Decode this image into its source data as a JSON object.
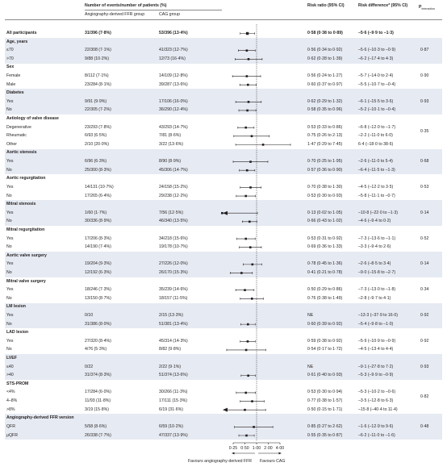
{
  "header": {
    "events_group": "Number of events/number of patients (%)",
    "col_a": "Angiography-derived FFR group",
    "col_b": "CAG group",
    "rr": "Risk ratio (95% CI)",
    "rd": "Risk difference* (95% CI)",
    "pint": "P",
    "pint_sub": "interaction"
  },
  "axis": {
    "ticks": [
      "0·25",
      "0·50",
      "1·00",
      "2·00",
      "4·00"
    ],
    "favours_left": "Favours angiography-derived FFR",
    "favours_right": "Favours CAG"
  },
  "chart_data": {
    "type": "forest",
    "x_scale": "log",
    "xlim": [
      0.25,
      4.0
    ],
    "reference_line": 1.0,
    "rows": [
      {
        "kind": "row",
        "bold": true,
        "label": "All participants",
        "a": "31/396 (7·8%)",
        "b": "53/396 (13·4%)",
        "rr": "0·58 (0·38 to 0·89)",
        "rd": "–5·6 (–9·9 to –1·3)",
        "est": 0.58,
        "lo": 0.38,
        "hi": 0.89
      },
      {
        "kind": "head",
        "label": "Age, years"
      },
      {
        "kind": "row",
        "label": "≤70",
        "a": "22/308 (7·1%)",
        "b": "41/323 (12·7%)",
        "rr": "0·56 (0·34 to 0·92)",
        "rd": "–5·6 (–10·3 to –0·9)",
        "est": 0.56,
        "lo": 0.34,
        "hi": 0.92
      },
      {
        "kind": "row",
        "label": ">70",
        "a": "9/88 (10·2%)",
        "b": "12/73 (16·4%)",
        "rr": "0·62 (0·28 to 1·39)",
        "rd": "–6·2 (–17·4 to 4·3)",
        "est": 0.62,
        "lo": 0.28,
        "hi": 1.39
      },
      {
        "kind": "head",
        "label": "Sex"
      },
      {
        "kind": "row",
        "label": "Female",
        "a": "8/112 (7·1%)",
        "b": "14/109 (12·8%)",
        "rr": "0·56 (0·24 to 1·27)",
        "rd": "–5·7 (–14·0 to 2·4)",
        "est": 0.56,
        "lo": 0.24,
        "hi": 1.27
      },
      {
        "kind": "row",
        "label": "Male",
        "a": "23/284 (8·1%)",
        "b": "39/287 (13·6%)",
        "rr": "0·60 (0·37 to 0·97)",
        "rd": "–5·5 (–10·7 to –0·4)",
        "est": 0.6,
        "lo": 0.37,
        "hi": 0.97
      },
      {
        "kind": "head",
        "label": "Diabetes"
      },
      {
        "kind": "row",
        "label": "Yes",
        "a": "9/91 (9·9%)",
        "b": "17/106 (16·0%)",
        "rr": "0·62 (0·29 to 1·32)",
        "rd": "–6·1 (–15·5 to 3·6)",
        "est": 0.62,
        "lo": 0.29,
        "hi": 1.32
      },
      {
        "kind": "row",
        "label": "No",
        "a": "22/305 (7·2%)",
        "b": "36/290 (12·4%)",
        "rr": "0·58 (0·35 to 0·96)",
        "rd": "–5·2 (–10·1 to –0·4)",
        "est": 0.58,
        "lo": 0.35,
        "hi": 0.96
      },
      {
        "kind": "head",
        "label": "Aetiology of valve disease"
      },
      {
        "kind": "row",
        "label": "Degenerative",
        "a": "23/293 (7·8%)",
        "b": "43/293 (14·7%)",
        "rr": "0·53 (0·33 to 0·86)",
        "rd": "–6·8 (–12·0 to –1·7)",
        "est": 0.53,
        "lo": 0.33,
        "hi": 0.86
      },
      {
        "kind": "row",
        "label": "Rheumatic",
        "a": "6/93 (6·5%)",
        "b": "7/81 (8·6%)",
        "rr": "0·75 (0·26 to 2·13)",
        "rd": "–2·2 (–11·0 to 6·0)",
        "est": 0.75,
        "lo": 0.26,
        "hi": 2.13
      },
      {
        "kind": "row",
        "label": "Other",
        "a": "2/10 (20·0%)",
        "b": "3/22 (13·6%)",
        "rr": "1·47 (0·29 to 7·45)",
        "rd": "6·4 (–18·0 to 38·6)",
        "est": 1.47,
        "lo": 0.29,
        "hi": 7.45
      },
      {
        "kind": "head",
        "label": "Aortic stenosis"
      },
      {
        "kind": "row",
        "label": "Yes",
        "a": "6/96 (6·3%)",
        "b": "8/90 (8·9%)",
        "rr": "0·70 (0·25 to 1·95)",
        "rd": "–2·6 (–11·0 to 5·4)",
        "est": 0.7,
        "lo": 0.25,
        "hi": 1.95
      },
      {
        "kind": "row",
        "label": "No",
        "a": "25/300 (8·3%)",
        "b": "45/306 (14·7%)",
        "rr": "0·57 (0·36 to 0·90)",
        "rd": "–6·4 (–11·5 to –1·3)",
        "est": 0.57,
        "lo": 0.36,
        "hi": 0.9
      },
      {
        "kind": "head",
        "label": "Aortic regurgitation"
      },
      {
        "kind": "row",
        "label": "Yes",
        "a": "14/131 (10·7%)",
        "b": "24/158 (15·2%)",
        "rr": "0·70 (0·38 to 1·30)",
        "rd": "–4·5 (–12·2 to 3·5)",
        "est": 0.7,
        "lo": 0.38,
        "hi": 1.3
      },
      {
        "kind": "row",
        "label": "No",
        "a": "17/265 (6·4%)",
        "b": "29/238 (12·2%)",
        "rr": "0·53 (0·30 to 0·93)",
        "rd": "–5·8 (–11·1 to –0·7)",
        "est": 0.53,
        "lo": 0.3,
        "hi": 0.93
      },
      {
        "kind": "head",
        "label": "Mitral stenosis"
      },
      {
        "kind": "row",
        "label": "Yes",
        "a": "1/60 (1·7%)",
        "b": "7/56 (12·5%)",
        "rr": "0·13 (0·02 to 1·05)",
        "rd": "–10·8 (–22·0 to –1·3)",
        "est": 0.13,
        "lo": 0.02,
        "hi": 1.05
      },
      {
        "kind": "row",
        "label": "No",
        "a": "30/336 (8·9%)",
        "b": "46/340 (13·5%)",
        "rr": "0·66 (0·43 to 1·02)",
        "rd": "–4·6 (–9·4 to 0·2)",
        "est": 0.66,
        "lo": 0.43,
        "hi": 1.02
      },
      {
        "kind": "head",
        "label": "Mitral regurgitation"
      },
      {
        "kind": "row",
        "label": "Yes",
        "a": "17/206 (8·3%)",
        "b": "34/218 (15·6%)",
        "rr": "0·53 (0·31 to 0·92)",
        "rd": "–7·3 (–13·6 to –1·1)",
        "est": 0.53,
        "lo": 0.31,
        "hi": 0.92
      },
      {
        "kind": "row",
        "label": "No",
        "a": "14/190 (7·4%)",
        "b": "19/178 (10·7%)",
        "rr": "0·69 (0·36 to 1·33)",
        "rd": "–3·3 (–9·4 to 2·6)",
        "est": 0.69,
        "lo": 0.36,
        "hi": 1.33
      },
      {
        "kind": "head",
        "label": "Aortic valve surgery"
      },
      {
        "kind": "row",
        "label": "Yes",
        "a": "19/204 (9·3%)",
        "b": "27/226 (12·0%)",
        "rr": "0·78 (0·45 to 1·36)",
        "rd": "–2·6 (–8·5 to 3·4)",
        "est": 0.78,
        "lo": 0.45,
        "hi": 1.36
      },
      {
        "kind": "row",
        "label": "No",
        "a": "12/192 (6·3%)",
        "b": "26/170 (15·3%)",
        "rr": "0·41 (0·21 to 0·78)",
        "rd": "–9·0 (–15·8 to –2·7)",
        "est": 0.41,
        "lo": 0.21,
        "hi": 0.78
      },
      {
        "kind": "head",
        "label": "Mitral valve surgery"
      },
      {
        "kind": "row",
        "label": "Yes",
        "a": "18/246 (7·3%)",
        "b": "35/239 (14·6%)",
        "rr": "0·50 (0·29 to 0·86)",
        "rd": "–7·3 (–13·0 to –1·8)",
        "est": 0.5,
        "lo": 0.29,
        "hi": 0.86
      },
      {
        "kind": "row",
        "label": "No",
        "a": "13/150 (8·7%)",
        "b": "18/157 (11·5%)",
        "rr": "0·76 (0·38 to 1·49)",
        "rd": "–2·8 (–9·7 to 4·1)",
        "est": 0.76,
        "lo": 0.38,
        "hi": 1.49
      },
      {
        "kind": "head",
        "label": "LM lesion"
      },
      {
        "kind": "row",
        "label": "Yes",
        "a": "0/10",
        "b": "2/15 (13·3%)",
        "rr": "NE",
        "rd": "–13·3 (–37·9 to 16·0)",
        "est": null
      },
      {
        "kind": "row",
        "label": "No",
        "a": "31/386 (8·0%)",
        "b": "51/381 (13·4%)",
        "rr": "0·60 (0·39 to 0·92)",
        "rd": "–5·4 (–9·8 to –1·0)",
        "est": 0.6,
        "lo": 0.39,
        "hi": 0.92
      },
      {
        "kind": "head",
        "label": "LAD lesion"
      },
      {
        "kind": "row",
        "label": "Yes",
        "a": "27/320 (8·4%)",
        "b": "45/314 (14·3%)",
        "rr": "0·59 (0·38 to 0·92)",
        "rd": "–5·9 (–10·9 to –0·9)",
        "est": 0.59,
        "lo": 0.38,
        "hi": 0.92
      },
      {
        "kind": "row",
        "label": "No",
        "a": "4/76 (5·3%)",
        "b": "8/82 (9·8%)",
        "rr": "0·54 (0·17 to 1·72)",
        "rd": "–4·5 (–13·4 to 4·4)",
        "est": 0.54,
        "lo": 0.17,
        "hi": 1.72
      },
      {
        "kind": "head",
        "label": "LVEF"
      },
      {
        "kind": "row",
        "label": "≤40",
        "a": "0/22",
        "b": "2/22 (9·1%)",
        "rr": "NE",
        "rd": "–9·1 (–27·8 to 7·2)",
        "est": null
      },
      {
        "kind": "row",
        "label": ">40",
        "a": "31/374 (8·3%)",
        "b": "51/374 (13·6%)",
        "rr": "0·61 (0·40 to 0·93)",
        "rd": "–5·3 (–9·9 to –0·9)",
        "est": 0.61,
        "lo": 0.4,
        "hi": 0.93
      },
      {
        "kind": "head",
        "label": "STS-PROM"
      },
      {
        "kind": "row",
        "label": "<4%",
        "a": "17/284 (6·0%)",
        "b": "30/266 (11·3%)",
        "rr": "0·53 (0·30 to 0·94)",
        "rd": "–5·3 (–10·2 to –0·6)",
        "est": 0.53,
        "lo": 0.3,
        "hi": 0.94
      },
      {
        "kind": "row",
        "label": "4–8%",
        "a": "11/93 (11·8%)",
        "b": "17/111 (15·3%)",
        "rr": "0·77 (0·38 to 1·57)",
        "rd": "–3·5 (–12·8 to 6·3)",
        "est": 0.77,
        "lo": 0.38,
        "hi": 1.57
      },
      {
        "kind": "row",
        "label": ">8%",
        "a": "3/19 (15·8%)",
        "b": "6/19 (31·6%)",
        "rr": "0·50 (0·15 to 1·71)",
        "rd": "–15·8 (–40·4 to 11·4)",
        "est": 0.5,
        "lo": 0.15,
        "hi": 1.71
      },
      {
        "kind": "head",
        "label": "Angiography-derived FFR version"
      },
      {
        "kind": "row",
        "label": "QFR",
        "a": "5/58 (8·6%)",
        "b": "6/59 (10·2%)",
        "rr": "0·85 (0·27 to 2·62)",
        "rd": "–1·6 (–12·9 to 9·6)",
        "est": 0.85,
        "lo": 0.27,
        "hi": 2.62
      },
      {
        "kind": "row",
        "label": "μQFR",
        "a": "26/338 (7·7%)",
        "b": "47/337 (13·9%)",
        "rr": "0·55 (0·35 to 0·87)",
        "rd": "–6·2 (–11·0 to –1·6)",
        "est": 0.55,
        "lo": 0.35,
        "hi": 0.87
      }
    ],
    "p_interaction": [
      {
        "group": "Age, years",
        "value": "0·87"
      },
      {
        "group": "Sex",
        "value": "0·90"
      },
      {
        "group": "Diabetes",
        "value": "0·93"
      },
      {
        "group": "Aetiology of valve disease",
        "value": "0·35"
      },
      {
        "group": "Aortic stenosis",
        "value": "0·68"
      },
      {
        "group": "Aortic regurgitation",
        "value": "0·53"
      },
      {
        "group": "Mitral stenosis",
        "value": "0·14"
      },
      {
        "group": "Mitral regurgitation",
        "value": "0·52"
      },
      {
        "group": "Aortic valve surgery",
        "value": "0·14"
      },
      {
        "group": "Mitral valve surgery",
        "value": "0·34"
      },
      {
        "group": "LM lesion",
        "value": "0·92"
      },
      {
        "group": "LAD lesion",
        "value": "0·92"
      },
      {
        "group": "LVEF",
        "value": "0·93"
      },
      {
        "group": "STS-PROM",
        "value": "0·82"
      },
      {
        "group": "Angiography-derived FFR version",
        "value": "0·48"
      }
    ],
    "colors": {
      "band": "#e6eaf2",
      "marker": "#231f20",
      "line": "#231f20"
    }
  }
}
